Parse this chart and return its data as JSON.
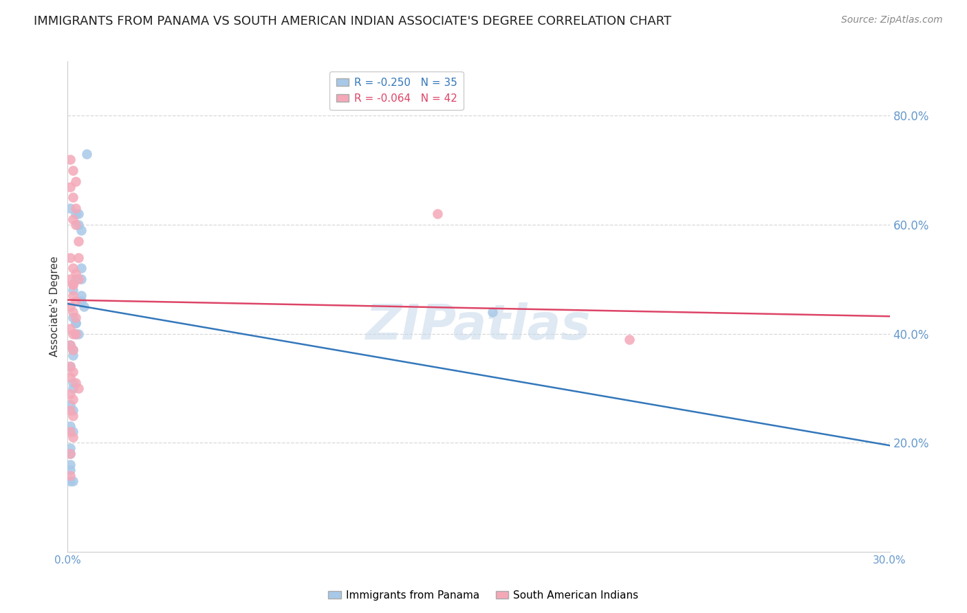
{
  "title": "IMMIGRANTS FROM PANAMA VS SOUTH AMERICAN INDIAN ASSOCIATE'S DEGREE CORRELATION CHART",
  "source": "Source: ZipAtlas.com",
  "ylabel": "Associate's Degree",
  "watermark": "ZIPatlas",
  "legend": [
    {
      "label": "R = -0.250   N = 35",
      "color": "#a8c8e8"
    },
    {
      "label": "R = -0.064   N = 42",
      "color": "#f4a8b8"
    }
  ],
  "legend_labels": [
    "Immigrants from Panama",
    "South American Indians"
  ],
  "right_ytick_vals": [
    0.2,
    0.4,
    0.6,
    0.8
  ],
  "right_ytick_labels": [
    "20.0%",
    "40.0%",
    "60.0%",
    "80.0%"
  ],
  "blue_scatter_x": [
    0.007,
    0.001,
    0.003,
    0.004,
    0.004,
    0.005,
    0.005,
    0.005,
    0.003,
    0.002,
    0.005,
    0.005,
    0.006,
    0.002,
    0.003,
    0.003,
    0.003,
    0.004,
    0.001,
    0.002,
    0.002,
    0.001,
    0.002,
    0.002,
    0.001,
    0.001,
    0.002,
    0.001,
    0.001,
    0.001,
    0.001,
    0.001,
    0.002,
    0.155,
    0.002
  ],
  "blue_scatter_y": [
    0.73,
    0.63,
    0.62,
    0.62,
    0.6,
    0.59,
    0.52,
    0.5,
    0.5,
    0.48,
    0.47,
    0.46,
    0.45,
    0.43,
    0.42,
    0.42,
    0.4,
    0.4,
    0.38,
    0.37,
    0.36,
    0.34,
    0.31,
    0.3,
    0.27,
    0.23,
    0.22,
    0.19,
    0.18,
    0.16,
    0.15,
    0.13,
    0.13,
    0.44,
    0.26
  ],
  "pink_scatter_x": [
    0.001,
    0.002,
    0.003,
    0.001,
    0.002,
    0.003,
    0.002,
    0.003,
    0.004,
    0.004,
    0.001,
    0.002,
    0.003,
    0.004,
    0.001,
    0.002,
    0.002,
    0.003,
    0.001,
    0.002,
    0.003,
    0.001,
    0.002,
    0.003,
    0.001,
    0.002,
    0.001,
    0.002,
    0.001,
    0.003,
    0.004,
    0.001,
    0.002,
    0.001,
    0.002,
    0.001,
    0.002,
    0.001,
    0.001,
    0.002,
    0.135,
    0.205
  ],
  "pink_scatter_y": [
    0.72,
    0.7,
    0.68,
    0.67,
    0.65,
    0.63,
    0.61,
    0.6,
    0.57,
    0.54,
    0.54,
    0.52,
    0.51,
    0.5,
    0.5,
    0.49,
    0.47,
    0.46,
    0.45,
    0.44,
    0.43,
    0.41,
    0.4,
    0.4,
    0.38,
    0.37,
    0.34,
    0.33,
    0.32,
    0.31,
    0.3,
    0.29,
    0.28,
    0.26,
    0.25,
    0.22,
    0.21,
    0.18,
    0.14,
    0.49,
    0.62,
    0.39
  ],
  "blue_line_x": [
    0.0,
    0.3
  ],
  "blue_line_y": [
    0.455,
    0.195
  ],
  "pink_line_x": [
    0.0,
    0.3
  ],
  "pink_line_y": [
    0.462,
    0.432
  ],
  "xlim": [
    0.0,
    0.3
  ],
  "ylim": [
    0.0,
    0.9
  ],
  "grid_yticks": [
    0.2,
    0.4,
    0.6,
    0.8
  ],
  "xtick_positions": [
    0.0,
    0.05,
    0.1,
    0.15,
    0.2,
    0.25,
    0.3
  ],
  "grid_color": "#d8d8d8",
  "background_color": "#ffffff",
  "scatter_size": 110,
  "blue_color": "#a8c8e8",
  "pink_color": "#f4a8b8",
  "blue_line_color": "#3377bb",
  "pink_line_color": "#dd4466",
  "axis_color": "#6699cc",
  "title_fontsize": 13,
  "source_fontsize": 10,
  "ylabel_fontsize": 11,
  "watermark_fontsize": 52,
  "watermark_color": "#c5d8ea",
  "watermark_alpha": 0.55
}
